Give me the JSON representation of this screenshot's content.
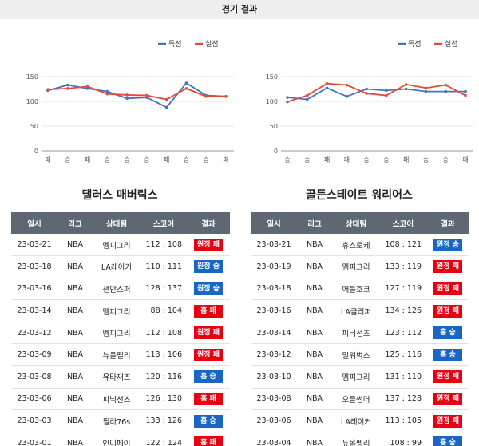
{
  "header": {
    "title": "경기 결과"
  },
  "legend": {
    "scored": "득점",
    "conceded": "실점"
  },
  "colors": {
    "scored": "#4472c4",
    "conceded": "#e04c3a",
    "win": "#1a66c2",
    "loss": "#e60012"
  },
  "table_headers": [
    "일시",
    "리그",
    "상대팀",
    "스코어",
    "결과"
  ],
  "chart_data": [
    {
      "type": "line",
      "categories": [
        "패",
        "승",
        "패",
        "승",
        "승",
        "승",
        "패",
        "승",
        "승",
        "패"
      ],
      "ylim": [
        0,
        150
      ],
      "yticks": [
        0,
        50,
        100,
        150
      ],
      "series": [
        {
          "name": "득점",
          "values": [
            122,
            133,
            126,
            120,
            106,
            108,
            88,
            137,
            112,
            110
          ]
        },
        {
          "name": "실점",
          "values": [
            124,
            126,
            130,
            115,
            113,
            112,
            104,
            126,
            110,
            110
          ]
        }
      ]
    },
    {
      "type": "line",
      "categories": [
        "승",
        "승",
        "패",
        "패",
        "승",
        "승",
        "패",
        "승",
        "승",
        "패"
      ],
      "ylim": [
        0,
        150
      ],
      "yticks": [
        0,
        50,
        100,
        150
      ],
      "series": [
        {
          "name": "득점",
          "values": [
            108,
            104,
            127,
            110,
            125,
            122,
            125,
            120,
            120,
            120
          ]
        },
        {
          "name": "실점",
          "values": [
            99,
            112,
            136,
            133,
            116,
            112,
            134,
            127,
            133,
            112
          ]
        }
      ]
    }
  ],
  "teams": [
    {
      "name": "댈러스 매버릭스",
      "games": [
        {
          "date": "23-03-21",
          "league": "NBA",
          "opponent": "멤피그리",
          "score": "112 : 108",
          "result": "원정 패",
          "outcome": "loss"
        },
        {
          "date": "23-03-18",
          "league": "NBA",
          "opponent": "LA레이커",
          "score": "110 : 111",
          "result": "원정 승",
          "outcome": "win"
        },
        {
          "date": "23-03-16",
          "league": "NBA",
          "opponent": "샌안스퍼",
          "score": "128 : 137",
          "result": "원정 승",
          "outcome": "win"
        },
        {
          "date": "23-03-14",
          "league": "NBA",
          "opponent": "멤피그리",
          "score": "88 : 104",
          "result": "홈 패",
          "outcome": "loss"
        },
        {
          "date": "23-03-12",
          "league": "NBA",
          "opponent": "멤피그리",
          "score": "112 : 108",
          "result": "원정 패",
          "outcome": "loss"
        },
        {
          "date": "23-03-09",
          "league": "NBA",
          "opponent": "뉴올펠리",
          "score": "113 : 106",
          "result": "원정 패",
          "outcome": "loss"
        },
        {
          "date": "23-03-08",
          "league": "NBA",
          "opponent": "유타재즈",
          "score": "120 : 116",
          "result": "홈 승",
          "outcome": "win"
        },
        {
          "date": "23-03-06",
          "league": "NBA",
          "opponent": "피닉선즈",
          "score": "126 : 130",
          "result": "홈 패",
          "outcome": "loss"
        },
        {
          "date": "23-03-03",
          "league": "NBA",
          "opponent": "필라76s",
          "score": "133 : 126",
          "result": "홈 승",
          "outcome": "win"
        },
        {
          "date": "23-03-01",
          "league": "NBA",
          "opponent": "인디페이",
          "score": "122 : 124",
          "result": "홈 패",
          "outcome": "loss"
        }
      ]
    },
    {
      "name": "골든스테이트 워리어스",
      "games": [
        {
          "date": "23-03-21",
          "league": "NBA",
          "opponent": "휴스로케",
          "score": "108 : 121",
          "result": "원정 승",
          "outcome": "win"
        },
        {
          "date": "23-03-19",
          "league": "NBA",
          "opponent": "멤피그리",
          "score": "133 : 119",
          "result": "원정 패",
          "outcome": "loss"
        },
        {
          "date": "23-03-18",
          "league": "NBA",
          "opponent": "애틀호크",
          "score": "127 : 119",
          "result": "원정 패",
          "outcome": "loss"
        },
        {
          "date": "23-03-16",
          "league": "NBA",
          "opponent": "LA클리퍼",
          "score": "134 : 126",
          "result": "원정 패",
          "outcome": "loss"
        },
        {
          "date": "23-03-14",
          "league": "NBA",
          "opponent": "피닉선즈",
          "score": "123 : 112",
          "result": "홈 승",
          "outcome": "win"
        },
        {
          "date": "23-03-12",
          "league": "NBA",
          "opponent": "밀워벅스",
          "score": "125 : 116",
          "result": "홈 승",
          "outcome": "win"
        },
        {
          "date": "23-03-10",
          "league": "NBA",
          "opponent": "멤피그리",
          "score": "131 : 110",
          "result": "원정 패",
          "outcome": "loss"
        },
        {
          "date": "23-03-08",
          "league": "NBA",
          "opponent": "오클썬더",
          "score": "137 : 128",
          "result": "원정 패",
          "outcome": "loss"
        },
        {
          "date": "23-03-06",
          "league": "NBA",
          "opponent": "LA레이커",
          "score": "113 : 105",
          "result": "원정 패",
          "outcome": "loss"
        },
        {
          "date": "23-03-04",
          "league": "NBA",
          "opponent": "뉴올펠리",
          "score": "108 : 99",
          "result": "홈 승",
          "outcome": "win"
        }
      ]
    }
  ]
}
